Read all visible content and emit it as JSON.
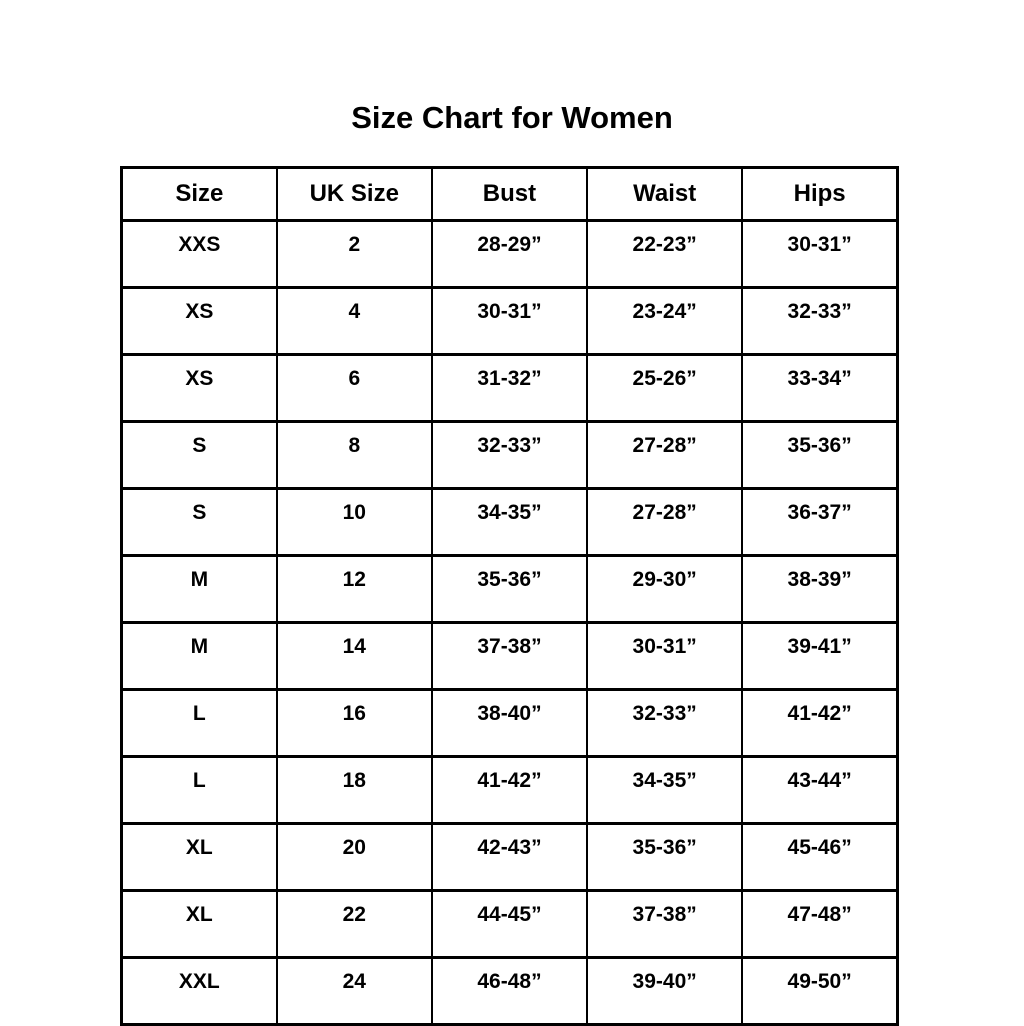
{
  "page": {
    "background_color": "#ffffff",
    "text_color": "#000000",
    "border_color": "#000000"
  },
  "chart_data": {
    "type": "table",
    "title": "Size Chart for Women",
    "columns": [
      "Size",
      "UK Size",
      "Bust",
      "Waist",
      "Hips"
    ],
    "rows": [
      [
        "XXS",
        "2",
        "28-29”",
        "22-23”",
        "30-31”"
      ],
      [
        "XS",
        "4",
        "30-31”",
        "23-24”",
        "32-33”"
      ],
      [
        "XS",
        "6",
        "31-32”",
        "25-26”",
        "33-34”"
      ],
      [
        "S",
        "8",
        "32-33”",
        "27-28”",
        "35-36”"
      ],
      [
        "S",
        "10",
        "34-35”",
        "27-28”",
        "36-37”"
      ],
      [
        "M",
        "12",
        "35-36”",
        "29-30”",
        "38-39”"
      ],
      [
        "M",
        "14",
        "37-38”",
        "30-31”",
        "39-41”"
      ],
      [
        "L",
        "16",
        "38-40”",
        "32-33”",
        "41-42”"
      ],
      [
        "L",
        "18",
        "41-42”",
        "34-35”",
        "43-44”"
      ],
      [
        "XL",
        "20",
        "42-43”",
        "35-36”",
        "45-46”"
      ],
      [
        "XL",
        "22",
        "44-45”",
        "37-38”",
        "47-48”"
      ],
      [
        "XXL",
        "24",
        "46-48”",
        "39-40”",
        "49-50”"
      ]
    ]
  }
}
